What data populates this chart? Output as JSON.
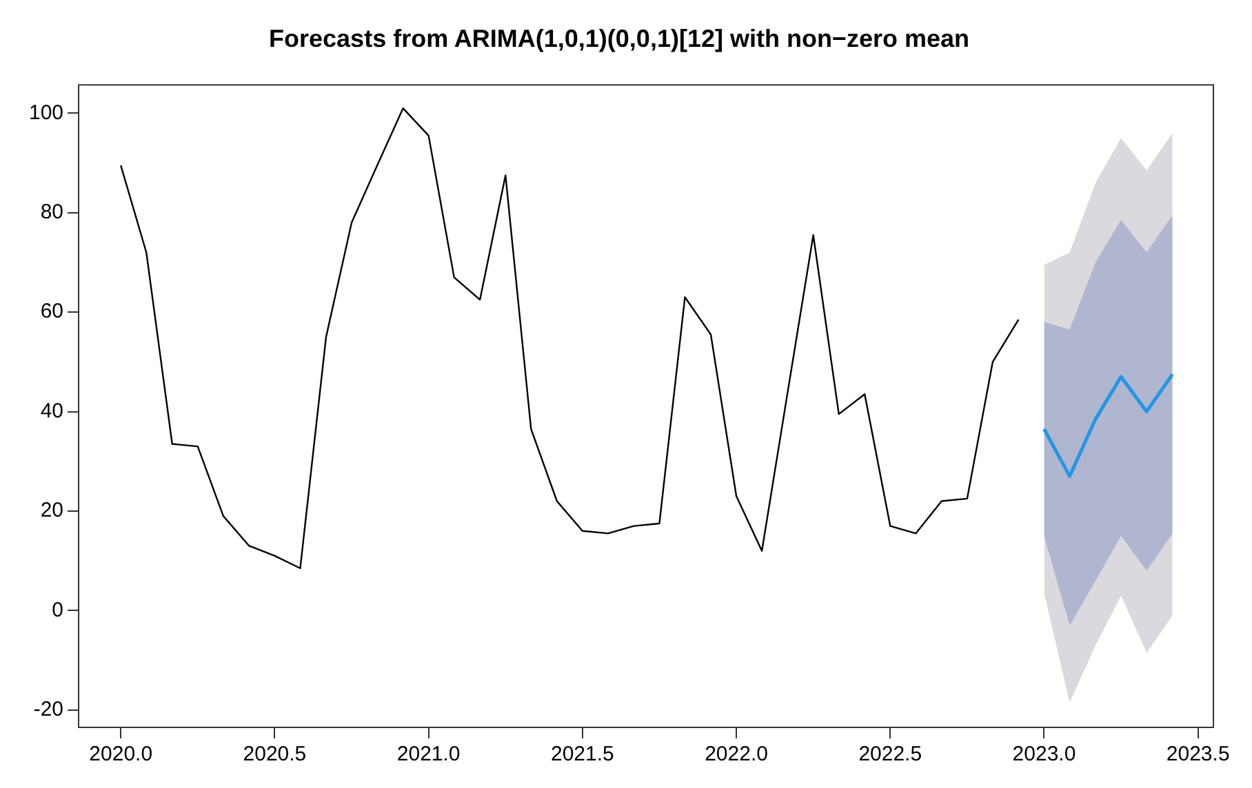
{
  "chart_data": {
    "type": "line",
    "title": "Forecasts from ARIMA(1,0,1)(0,0,1)[12] with non−zero mean",
    "series": [
      {
        "type": "line",
        "color": "#000000",
        "x": [
          2020.0,
          2020.083,
          2020.167,
          2020.25,
          2020.333,
          2020.417,
          2020.5,
          2020.583,
          2020.667,
          2020.75,
          2020.833,
          2020.917,
          2021.0,
          2021.083,
          2021.167,
          2021.25,
          2021.333,
          2021.417,
          2021.5,
          2021.583,
          2021.667,
          2021.75,
          2021.833,
          2021.917,
          2022.0,
          2022.083,
          2022.167,
          2022.25,
          2022.333,
          2022.417,
          2022.5,
          2022.583,
          2022.667,
          2022.75,
          2022.833,
          2022.917
        ],
        "values": [
          89.5,
          72,
          33.5,
          33,
          19,
          13,
          11,
          8.5,
          55,
          78,
          89.5,
          101,
          95.5,
          67,
          62.5,
          87.5,
          36.5,
          22,
          16,
          15.5,
          17,
          17.5,
          63,
          55.5,
          23,
          12,
          44,
          75.5,
          39.5,
          43.5,
          17,
          15.5,
          22,
          22.5,
          50,
          58.5
        ]
      },
      {
        "type": "line",
        "color": "#d9d9de",
        "x": [
          2023.0,
          2023.083,
          2023.167,
          2023.25,
          2023.333,
          2023.417
        ],
        "values": [
          null,
          null,
          null,
          null,
          null,
          null
        ],
        "lower": [
          3.5,
          -18.5,
          -7,
          3,
          -8.5,
          -1
        ],
        "upper": [
          69.5,
          72,
          86,
          95,
          88.5,
          96
        ]
      },
      {
        "type": "line",
        "color": "#2297e6",
        "x": [
          2023.0,
          2023.083,
          2023.167,
          2023.25,
          2023.333,
          2023.417
        ],
        "values": [
          36.5,
          27,
          38.5,
          47,
          40,
          47.5
        ],
        "lower": [
          15,
          -3,
          6,
          15,
          8,
          15.5
        ],
        "upper": [
          58,
          56.5,
          70,
          78.5,
          72,
          79.5
        ]
      }
    ],
    "xlim": [
      2019.863,
      2023.55
    ],
    "ylim": [
      -23.5,
      105.7
    ],
    "xticks": [
      {
        "value": 2020,
        "label": "2020.0"
      },
      {
        "value": 2020.5,
        "label": "2020.5"
      },
      {
        "value": 2021,
        "label": "2021.0"
      },
      {
        "value": 2021.5,
        "label": "2021.5"
      },
      {
        "value": 2022,
        "label": "2022.0"
      },
      {
        "value": 2022.5,
        "label": "2022.5"
      },
      {
        "value": 2023,
        "label": "2023.0"
      },
      {
        "value": 2023.5,
        "label": "2023.5"
      }
    ],
    "yticks": [
      -20,
      0,
      20,
      40,
      60,
      80,
      100
    ],
    "grid": false,
    "legend": false,
    "marker": "none",
    "line_style": "solid"
  }
}
